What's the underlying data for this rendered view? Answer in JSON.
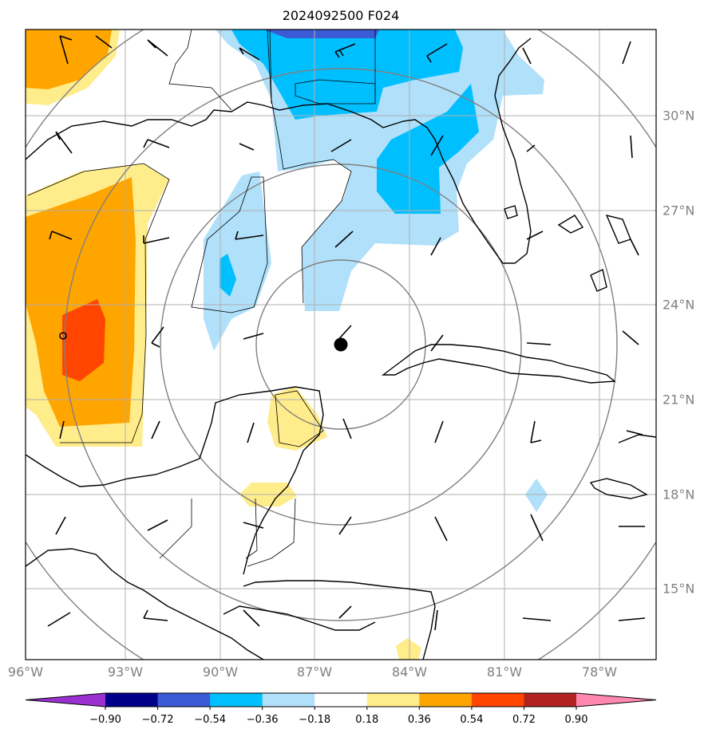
{
  "title": "2024092500 F024",
  "lon_labels": [
    "96°W",
    "93°W",
    "90°W",
    "87°W",
    "84°W",
    "81°W",
    "78°W"
  ],
  "lat_labels": [
    "30°N",
    "27°N",
    "24°N",
    "21°N",
    "18°N",
    "15°N"
  ],
  "colorbar": {
    "ticks": [
      "−0.90",
      "−0.72",
      "−0.54",
      "−0.36",
      "−0.18",
      "0.18",
      "0.36",
      "0.54",
      "0.72",
      "0.90"
    ],
    "colors": [
      "#9a30d0",
      "#00008b",
      "#3b5bd6",
      "#00bfff",
      "#b0e0fa",
      "#ffffff",
      "#ffec8b",
      "#ffa500",
      "#ff4500",
      "#b22222",
      "#ff88b0"
    ]
  },
  "storm_center": {
    "lon": -86.2,
    "lat": 22.7
  }
}
